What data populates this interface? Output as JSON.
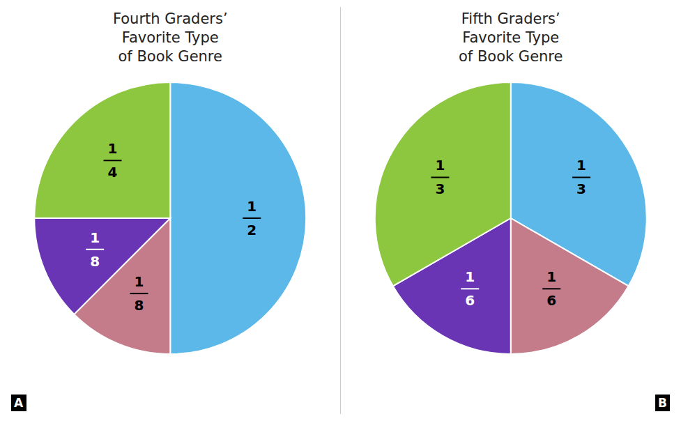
{
  "chart_data": [
    {
      "type": "pie",
      "title": "Fourth Graders’\nFavorite Type\nof Book Genre",
      "values": [
        0.5,
        0.125,
        0.125,
        0.25
      ],
      "value_labels": [
        "1\n2",
        "1\n8",
        "1\n8",
        "1\n4"
      ],
      "colors": [
        "#5BB8E8",
        "#C47B8A",
        "#6A35B5",
        "#8DC63F"
      ],
      "data_labels": true,
      "annotations": [
        "A"
      ]
    },
    {
      "type": "pie",
      "title": "Fifth Graders’\nFavorite Type\nof Book Genre",
      "values": [
        0.3333,
        0.1667,
        0.1667,
        0.3333
      ],
      "value_labels": [
        "1\n3",
        "1\n6",
        "1\n6",
        "1\n3"
      ],
      "colors": [
        "#5BB8E8",
        "#C47B8A",
        "#6A35B5",
        "#8DC63F"
      ],
      "data_labels": true,
      "annotations": [
        "B"
      ]
    }
  ]
}
